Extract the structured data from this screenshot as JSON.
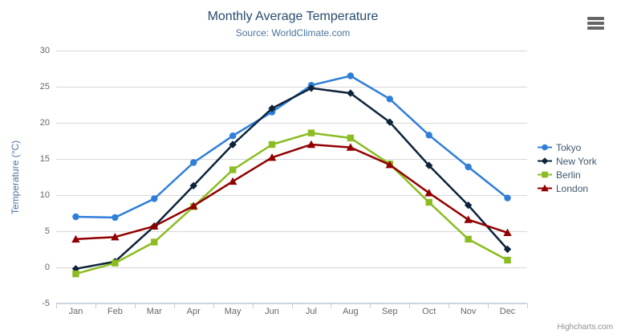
{
  "chart": {
    "title": "Monthly Average Temperature",
    "subtitle": "Source: WorldClimate.com",
    "y_axis_title": "Temperature (°C)",
    "credit": "Highcharts.com",
    "icons": {
      "menu": "hamburger-menu-icon"
    },
    "colors": {
      "title": "#274b6d",
      "subtitle": "#4d759e",
      "axis_labels": "#666666",
      "grid": "#d8d8d8",
      "axis_line": "#c0d0e0",
      "legend_text": "#3e576f",
      "credit": "#909090"
    }
  },
  "chart_data": {
    "type": "line",
    "title": "Monthly Average Temperature",
    "subtitle": "Source: WorldClimate.com",
    "xlabel": "",
    "ylabel": "Temperature (°C)",
    "ylim": [
      -5,
      30
    ],
    "yticks": [
      -5,
      0,
      5,
      10,
      15,
      20,
      25,
      30
    ],
    "grid": true,
    "legend_position": "right",
    "categories": [
      "Jan",
      "Feb",
      "Mar",
      "Apr",
      "May",
      "Jun",
      "Jul",
      "Aug",
      "Sep",
      "Oct",
      "Nov",
      "Dec"
    ],
    "series": [
      {
        "name": "Tokyo",
        "color": "#2f7ed8",
        "marker": "circle",
        "values": [
          7.0,
          6.9,
          9.5,
          14.5,
          18.2,
          21.5,
          25.2,
          26.5,
          23.3,
          18.3,
          13.9,
          9.6
        ]
      },
      {
        "name": "New York",
        "color": "#0d233a",
        "marker": "diamond",
        "values": [
          -0.2,
          0.8,
          5.7,
          11.3,
          17.0,
          22.0,
          24.8,
          24.1,
          20.1,
          14.1,
          8.6,
          2.5
        ]
      },
      {
        "name": "Berlin",
        "color": "#8bbc21",
        "marker": "square",
        "values": [
          -0.9,
          0.6,
          3.5,
          8.4,
          13.5,
          17.0,
          18.6,
          17.9,
          14.3,
          9.0,
          3.9,
          1.0
        ]
      },
      {
        "name": "London",
        "color": "#910000",
        "marker": "triangle-up",
        "values": [
          3.9,
          4.2,
          5.7,
          8.5,
          11.9,
          15.2,
          17.0,
          16.6,
          14.2,
          10.3,
          6.6,
          4.8
        ]
      }
    ]
  }
}
